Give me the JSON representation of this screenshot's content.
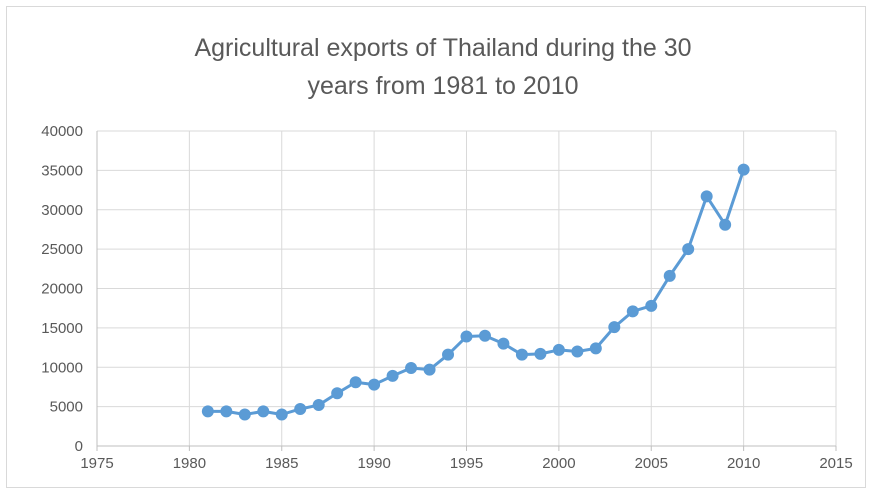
{
  "chart_data": {
    "type": "scatter",
    "title_lines": [
      "Agricultural exports of Thailand during the 30",
      "years from 1981 to 2010"
    ],
    "xlabel": "",
    "ylabel": "",
    "xlim": [
      1975,
      2015
    ],
    "ylim": [
      0,
      40000
    ],
    "x_ticks": [
      1975,
      1980,
      1985,
      1990,
      1995,
      2000,
      2005,
      2010,
      2015
    ],
    "y_ticks": [
      0,
      5000,
      10000,
      15000,
      20000,
      25000,
      30000,
      35000,
      40000
    ],
    "grid": true,
    "series": [
      {
        "color": "#5b9bd5",
        "x": [
          1981,
          1982,
          1983,
          1984,
          1985,
          1986,
          1987,
          1988,
          1989,
          1990,
          1991,
          1992,
          1993,
          1994,
          1995,
          1996,
          1997,
          1998,
          1999,
          2000,
          2001,
          2002,
          2003,
          2004,
          2005,
          2006,
          2007,
          2008,
          2009,
          2010
        ],
        "y": [
          4400,
          4400,
          4000,
          4400,
          4000,
          4700,
          5200,
          6700,
          8100,
          7800,
          8900,
          9900,
          9700,
          11600,
          13900,
          14000,
          13000,
          11600,
          11700,
          12200,
          12000,
          12400,
          15100,
          17100,
          17800,
          21600,
          25000,
          31700,
          28100,
          35100
        ]
      }
    ]
  }
}
